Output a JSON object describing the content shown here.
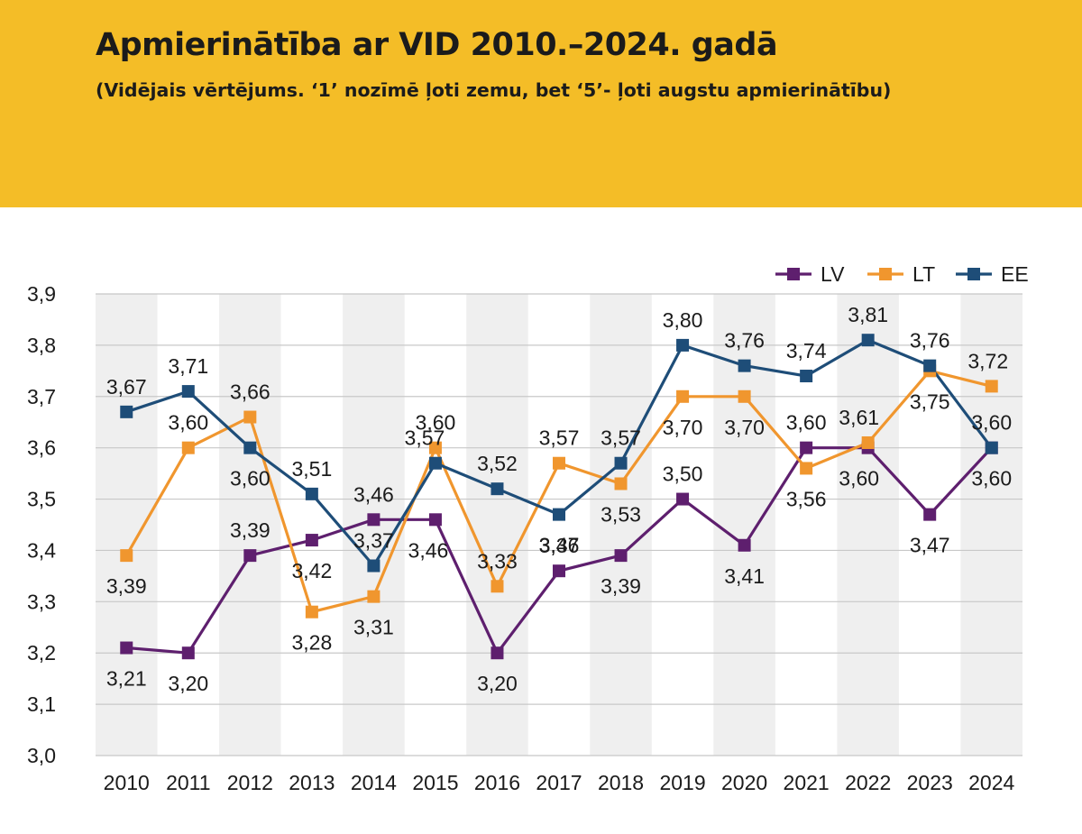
{
  "header": {
    "title": "Apmierinātība ar VID 2010.–2024. gadā",
    "subtitle": "(Vidējais vērtējums. ‘1’ nozīmē ļoti zemu, bet ‘5’- ļoti augstu apmierinātību)"
  },
  "colors": {
    "banner": "#F4BD27",
    "LV": "#5E1F6E",
    "LT": "#F0962E",
    "EE": "#1E4D78",
    "band": "#EFEFEF",
    "grid": "#C8C8C8"
  },
  "chart_data": {
    "type": "line",
    "categories": [
      "2010",
      "2011",
      "2012",
      "2013",
      "2014",
      "2015",
      "2016",
      "2017",
      "2018",
      "2019",
      "2020",
      "2021",
      "2022",
      "2023",
      "2024"
    ],
    "ylim": [
      3.0,
      3.9
    ],
    "yticks": [
      3.0,
      3.1,
      3.2,
      3.3,
      3.4,
      3.5,
      3.6,
      3.7,
      3.8,
      3.9
    ],
    "ytick_labels": [
      "3,0",
      "3,1",
      "3,2",
      "3,3",
      "3,4",
      "3,5",
      "3,6",
      "3,7",
      "3,8",
      "3,9"
    ],
    "grid": true,
    "legend_position": "top-right",
    "series": [
      {
        "name": "LV",
        "values": [
          3.21,
          3.2,
          3.39,
          3.42,
          3.46,
          3.46,
          3.2,
          3.36,
          3.39,
          3.5,
          3.41,
          3.6,
          3.6,
          3.47,
          3.6
        ],
        "labels": [
          "3,21",
          "3,20",
          "3,39",
          "3,42",
          "3,46",
          "3,46",
          "3,20",
          "3,36",
          "3,39",
          "3,50",
          "3,41",
          "3,60",
          "3,60",
          "3,47",
          "3,60"
        ]
      },
      {
        "name": "LT",
        "values": [
          3.39,
          3.6,
          3.66,
          3.28,
          3.31,
          3.6,
          3.33,
          3.57,
          3.53,
          3.7,
          3.7,
          3.56,
          3.61,
          3.75,
          3.72
        ],
        "labels": [
          "3,39",
          "3,60",
          "3,66",
          "3,28",
          "3,31",
          "3,60",
          "3,33",
          "3,57",
          "3,53",
          "3,70",
          "3,70",
          "3,56",
          "3,61",
          "3,75",
          "3,72"
        ]
      },
      {
        "name": "EE",
        "values": [
          3.67,
          3.71,
          3.6,
          3.51,
          3.37,
          3.57,
          3.52,
          3.47,
          3.57,
          3.8,
          3.76,
          3.74,
          3.81,
          3.76,
          3.6
        ],
        "labels": [
          "3,67",
          "3,71",
          "3,60",
          "3,51",
          "3,37",
          "3,57",
          "3,52",
          "3,47",
          "3,57",
          "3,80",
          "3,76",
          "3,74",
          "3,81",
          "3,76",
          "3,60"
        ]
      }
    ]
  }
}
